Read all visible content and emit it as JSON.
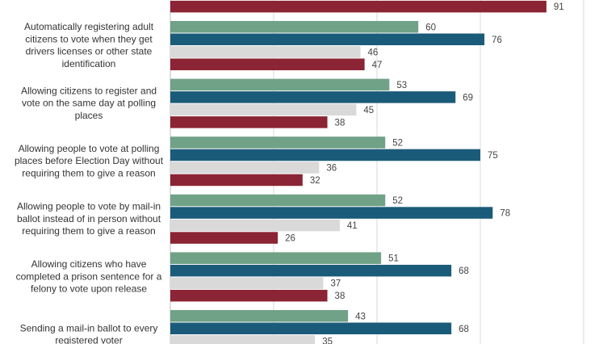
{
  "chart_data": {
    "type": "bar",
    "orientation": "horizontal",
    "xlim": [
      0,
      100
    ],
    "grid": true,
    "series_colors": [
      "#6fa287",
      "#1b5b7a",
      "#d9d9d9",
      "#8b2434"
    ],
    "categories": [
      "",
      "Automatically registering adult citizens to vote when they get drivers licenses or other state identification",
      "Allowing citizens to register and vote on the same day at polling places",
      "Allowing people to vote at polling places before Election Day without requiring them to give a reason",
      "Allowing people to vote by mail-in ballot instead of in person without requiring them to give a reason",
      "Allowing citizens who have completed a prison sentence for a felony to vote upon release",
      "Sending a mail-in ballot to every registered voter"
    ],
    "category_lines": [
      [],
      [
        "Automatically registering adult",
        "citizens to vote when they get",
        "drivers licenses or other state",
        "identification"
      ],
      [
        "Allowing citizens to register and",
        "vote on the same day at polling",
        "places"
      ],
      [
        "Allowing people to vote at polling",
        "places before Election Day without",
        "requiring them to give a reason"
      ],
      [
        "Allowing people to vote by mail-in",
        "ballot instead of in person without",
        "requiring them to give a reason"
      ],
      [
        "Allowing citizens who have",
        "completed a prison sentence for a",
        "felony to vote upon release"
      ],
      [
        "Sending a mail-in ballot to every",
        "registered voter"
      ]
    ],
    "series": [
      {
        "values": [
          null,
          60,
          53,
          52,
          52,
          51,
          43
        ]
      },
      {
        "values": [
          null,
          76,
          69,
          75,
          78,
          68,
          68
        ]
      },
      {
        "values": [
          null,
          46,
          45,
          36,
          41,
          37,
          35
        ]
      },
      {
        "values": [
          91,
          47,
          38,
          32,
          26,
          38,
          null
        ]
      }
    ]
  }
}
